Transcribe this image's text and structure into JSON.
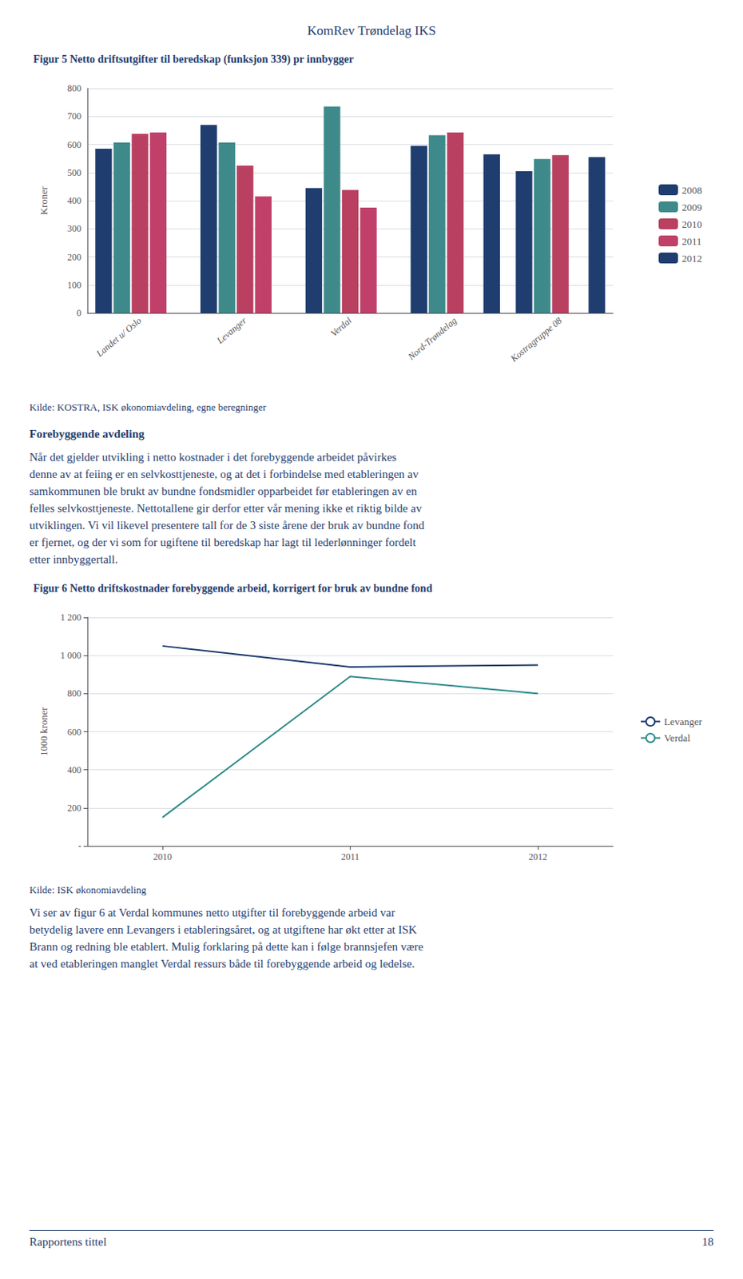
{
  "header": "KomRev Trøndelag  IKS",
  "section_title": "Forebyggende avdeling",
  "paragraphs": [
    [
      "Når det gjelder utvikling i netto kostnader i det forebyggende arbeidet påvirkes",
      "denne av at feiing er en selvkosttjeneste, og at det i forbindelse med etableringen av",
      "samkommunen ble brukt av bundne fondsmidler opparbeidet før etableringen av en",
      "felles selvkosttjeneste. Nettotallene gir derfor etter vår mening ikke et riktig bilde av",
      "utviklingen. Vi vil likevel presentere tall for de 3 siste årene der bruk av bundne fond",
      "er fjernet, og der vi som for ugiftene til beredskap har lagt til lederlønninger fordelt",
      "etter innbyggertall."
    ],
    [
      "Vi ser av figur 6 at Verdal kommunes netto utgifter til forebyggende arbeid var",
      "betydelig lavere enn Levangers i etableringsåret, og at utgiftene har økt etter at ISK",
      "Brann og redning ble etablert. Mulig forklaring på dette kan i følge brannsjefen være",
      "at ved etableringen manglet Verdal ressurs både til forebyggende arbeid og ledelse."
    ]
  ],
  "footer": {
    "left": "Rapportens tittel",
    "right": "18"
  },
  "chart_data": [
    {
      "type": "bar",
      "title": "Figur 5 Netto driftsutgifter til beredskap (funksjon 339) pr innbygger",
      "annotations": [
        "Kilde: KOSTRA, ISK økonomiavdeling, egne beregninger"
      ],
      "categories": [
        "Landet u/ Oslo",
        "Levanger",
        "Verdal",
        "Nord-Trøndelag",
        "Kostragruppe 08"
      ],
      "series": [
        {
          "name": "2008",
          "color": "#1F3D6E",
          "values": [
            585,
            670,
            445,
            595,
            505
          ]
        },
        {
          "name": "2009",
          "color": "#3E8A8A",
          "values": [
            607,
            607,
            735,
            633,
            548
          ]
        },
        {
          "name": "2010",
          "color": "#B94060",
          "values": [
            638,
            525,
            438,
            643,
            562
          ]
        },
        {
          "name": "2011",
          "color": "#C0406A",
          "values": [
            643,
            415,
            375,
            null,
            null
          ]
        },
        {
          "name": "2012",
          "color": "#1F3D6E",
          "values": [
            null,
            null,
            null,
            565,
            555
          ]
        }
      ],
      "ylabel": "Kroner",
      "ylim": [
        0,
        800
      ],
      "yticks": [
        0,
        100,
        200,
        300,
        400,
        500,
        600,
        700,
        800
      ],
      "grid": true,
      "legend": "right"
    },
    {
      "type": "line",
      "title": "Figur 6 Netto driftskostnader forebyggende arbeid, korrigert for bruk av bundne fond",
      "annotations": [
        "Kilde: ISK økonomiavdeling"
      ],
      "x": [
        2010,
        2011,
        2012
      ],
      "series": [
        {
          "name": "Levanger",
          "color": "#1F3D6E",
          "values": [
            1050,
            940,
            950
          ]
        },
        {
          "name": "Verdal",
          "color": "#2E8B8B",
          "values": [
            150,
            890,
            800
          ]
        }
      ],
      "xlim": [
        2009.6,
        2012.4
      ],
      "xticks": [
        2010,
        2011,
        2012
      ],
      "ylabel": "1000 kroner",
      "ylim": [
        0,
        1200
      ],
      "yticks": [
        {
          "value": 0,
          "label": "-"
        },
        200,
        400,
        600,
        800,
        {
          "value": 1000,
          "label": "1 000"
        },
        {
          "value": 1200,
          "label": "1 200"
        }
      ],
      "grid": true,
      "legend": "right"
    }
  ]
}
